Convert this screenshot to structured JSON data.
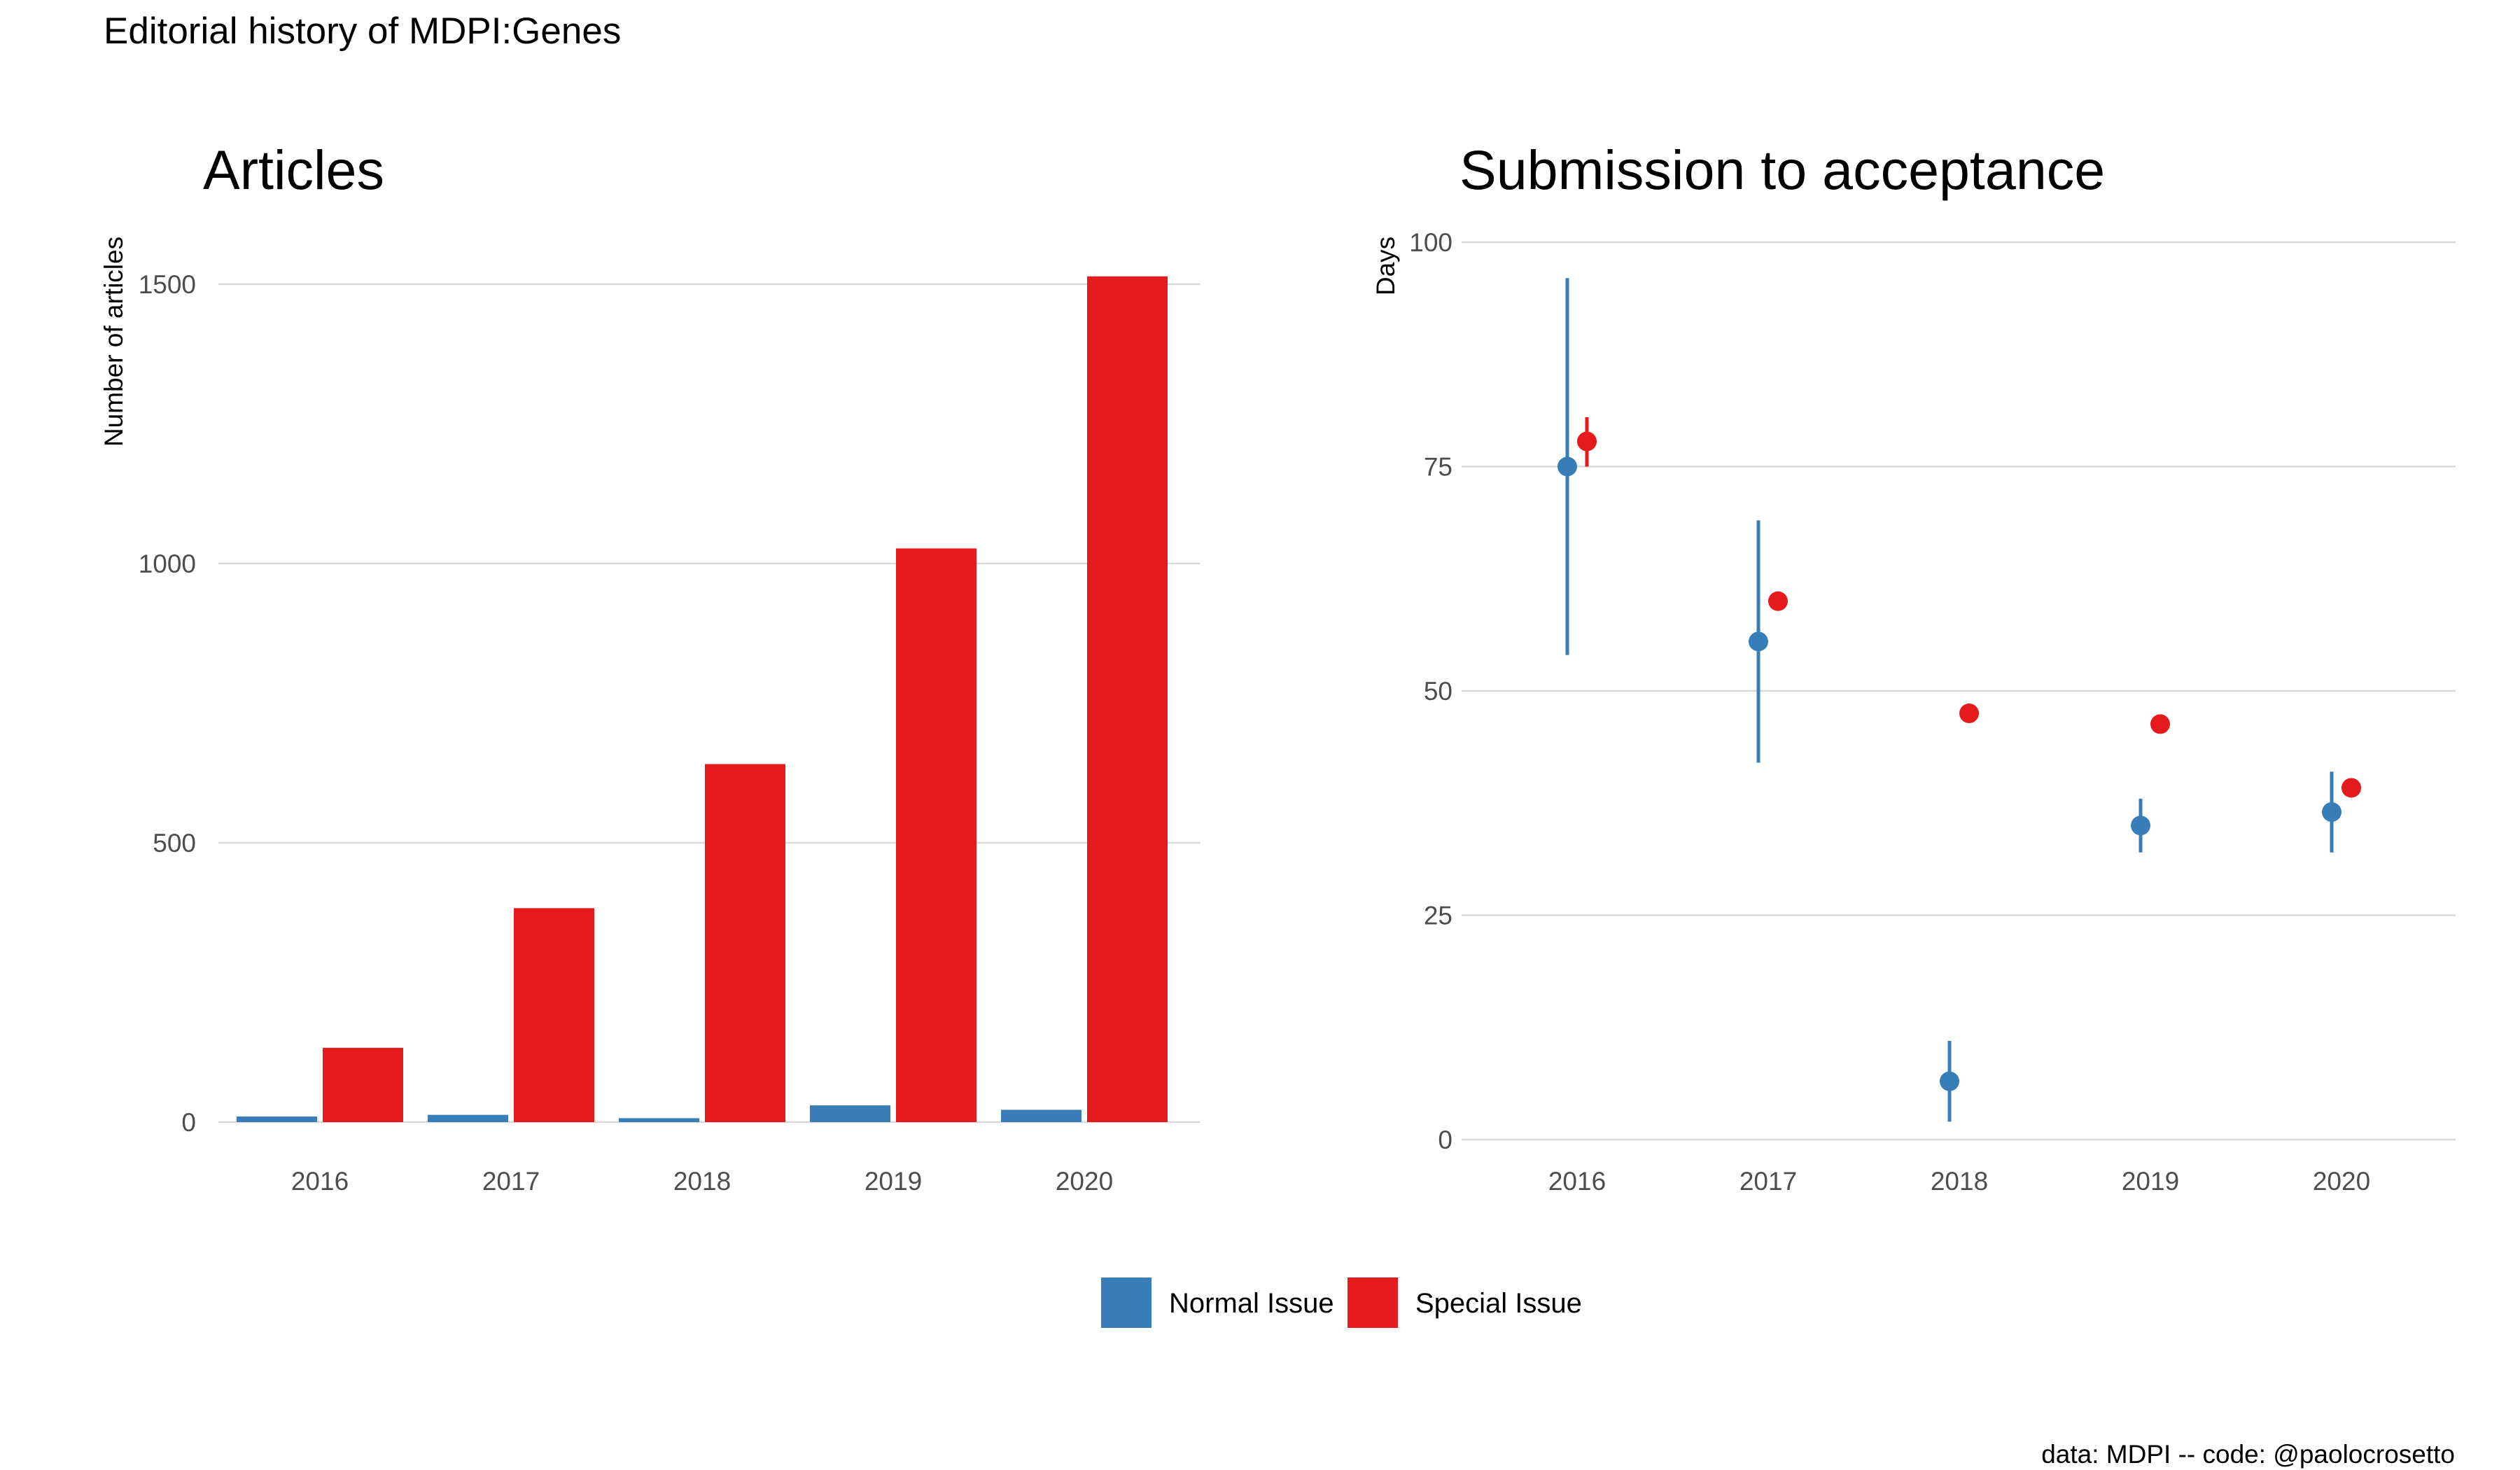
{
  "figure": {
    "title": "Editorial history of MDPI:Genes",
    "caption": "data: MDPI -- code: @paolocrosetto"
  },
  "colors": {
    "normal": "#377EB8",
    "special": "#E41A1C",
    "grid": "#d9d9d9",
    "tick_text": "#4d4d4d"
  },
  "legend": {
    "placement": "bottom-center",
    "items": [
      {
        "label": "Normal Issue",
        "color": "#377EB8"
      },
      {
        "label": "Special Issue",
        "color": "#E41A1C"
      }
    ]
  },
  "chart_data": [
    {
      "type": "bar",
      "title": "Articles",
      "xlabel": "",
      "ylabel": "Number of articles",
      "grid": "horizontal",
      "ylim": [
        0,
        1600
      ],
      "yticks": [
        0,
        500,
        1000,
        1500
      ],
      "categories": [
        "2016",
        "2017",
        "2018",
        "2019",
        "2020"
      ],
      "series": [
        {
          "name": "Normal Issue",
          "values": [
            10,
            13,
            7,
            30,
            22
          ]
        },
        {
          "name": "Special Issue",
          "values": [
            133,
            383,
            641,
            1027,
            1514
          ]
        }
      ]
    },
    {
      "type": "scatter",
      "title": "Submission to acceptance",
      "xlabel": "",
      "ylabel": "Days",
      "grid": "horizontal",
      "ylim": [
        0,
        100
      ],
      "yticks": [
        0,
        25,
        50,
        75,
        100
      ],
      "categories": [
        "2016",
        "2017",
        "2018",
        "2019",
        "2020"
      ],
      "series": [
        {
          "name": "Normal Issue",
          "values": [
            75,
            55.5,
            6.5,
            35,
            36.5
          ],
          "low": [
            54,
            42,
            2,
            32,
            32
          ],
          "high": [
            96,
            69,
            11,
            38,
            41
          ]
        },
        {
          "name": "Special Issue",
          "values": [
            77.8,
            60,
            47.5,
            46.3,
            39.2
          ],
          "low": [
            75,
            59,
            47,
            46,
            39
          ],
          "high": [
            80.5,
            61,
            48,
            46.6,
            39.4
          ]
        }
      ]
    }
  ]
}
